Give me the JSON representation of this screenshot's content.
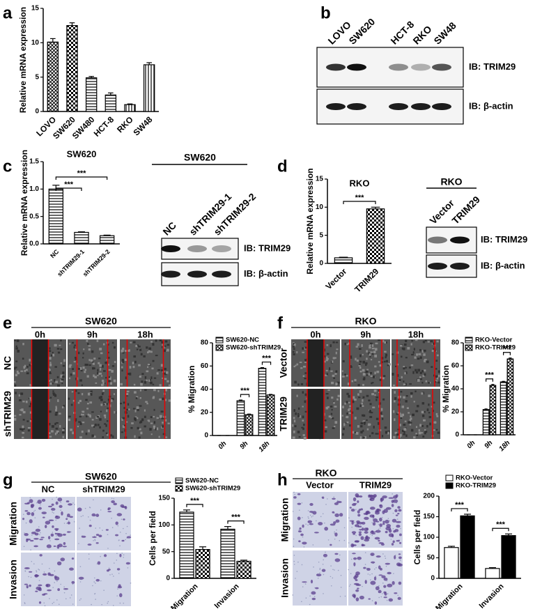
{
  "panel_labels": [
    "a",
    "b",
    "c",
    "d",
    "e",
    "f",
    "g",
    "h"
  ],
  "chart_data": [
    {
      "type": "bar",
      "ylabel": "Relative mRNA expression",
      "categories": [
        "LOVO",
        "SW620",
        "SW480",
        "HCT-8",
        "RKO",
        "SW48"
      ],
      "values": [
        10.1,
        12.5,
        4.9,
        2.4,
        1.0,
        6.8
      ],
      "errors": [
        0.5,
        0.4,
        0.2,
        0.3,
        0.1,
        0.3
      ],
      "color": "#000000",
      "patterns": [
        "crosshatch",
        "checker",
        "hlines",
        "hlines",
        "vlines",
        "vlines"
      ],
      "ylim": [
        0,
        15
      ],
      "yticks": [
        0,
        5,
        10,
        15
      ]
    },
    {
      "type": "bar",
      "title": "SW620",
      "ylabel": "Relative mRNA expression",
      "categories": [
        "NC",
        "shTRIM29-1",
        "shTRIM29-2"
      ],
      "values": [
        1.0,
        0.21,
        0.15
      ],
      "errors": [
        0.07,
        0.01,
        0.01
      ],
      "color": "#000000",
      "patterns": [
        "hlines",
        "hlines",
        "hlines"
      ],
      "ylim": [
        0,
        1.5
      ],
      "yticks": [
        {
          "value": 0,
          "label": "0.0"
        },
        0.5,
        {
          "value": 1,
          "label": "1.0"
        },
        1.5
      ],
      "annotations": [
        "***",
        "***"
      ]
    },
    {
      "type": "bar",
      "title": "RKO",
      "ylabel": "Relative mRNA expression",
      "categories": [
        "Vector",
        "TRIM29"
      ],
      "values": [
        1.0,
        9.7
      ],
      "errors": [
        0.1,
        0.3
      ],
      "color": "#000000",
      "patterns": [
        "hlines",
        "checker"
      ],
      "ylim": [
        0,
        15
      ],
      "yticks": [
        0,
        5,
        10,
        15
      ],
      "annotations": [
        "***"
      ]
    },
    {
      "type": "bar",
      "ylabel": "% Migration",
      "categories": [
        "0h",
        "9h",
        "18h"
      ],
      "series": [
        {
          "name": "SW620-NC",
          "color": "#000000",
          "pattern": "hlines",
          "values": [
            0,
            30,
            58
          ],
          "errors": [
            0,
            0.6,
            0.6
          ]
        },
        {
          "name": "SW620-shTRIM29",
          "color": "#000000",
          "pattern": "crosshatch",
          "values": [
            0,
            18,
            35
          ],
          "errors": [
            0,
            0.5,
            0.5
          ]
        }
      ],
      "ylim": [
        0,
        80
      ],
      "yticks": [
        0,
        20,
        40,
        60,
        80
      ],
      "annotations": [
        "***",
        "***"
      ],
      "legend": "upper left"
    },
    {
      "type": "bar",
      "ylabel": "% Migration",
      "categories": [
        "0h",
        "9h",
        "18h"
      ],
      "series": [
        {
          "name": "RKO-Vector",
          "color": "#000000",
          "pattern": "hlines",
          "values": [
            0,
            22,
            46
          ],
          "errors": [
            0,
            0.5,
            0.5
          ]
        },
        {
          "name": "RKO-TRIM29",
          "color": "#000000",
          "pattern": "crosshatch",
          "values": [
            0,
            43,
            66
          ],
          "errors": [
            0,
            0.8,
            0.8
          ]
        }
      ],
      "ylim": [
        0,
        80
      ],
      "yticks": [
        0,
        20,
        40,
        60,
        80
      ],
      "annotations": [
        "***",
        "***"
      ],
      "legend": "upper left"
    },
    {
      "type": "bar",
      "ylabel": "Cells per field",
      "categories": [
        "Migration",
        "Invasion"
      ],
      "series": [
        {
          "name": "SW620-NC",
          "color": "#000000",
          "pattern": "hlines",
          "values": [
            124,
            92
          ],
          "errors": [
            4,
            5
          ]
        },
        {
          "name": "SW620-shTRIM29",
          "color": "#000000",
          "pattern": "checker",
          "values": [
            54,
            32
          ],
          "errors": [
            5,
            2
          ]
        }
      ],
      "ylim": [
        0,
        150
      ],
      "yticks": [
        0,
        50,
        100,
        150
      ],
      "annotations": [
        "***",
        "***"
      ],
      "legend": "upper left"
    },
    {
      "type": "bar",
      "ylabel": "Cells per field",
      "categories": [
        "Migration",
        "Invasion"
      ],
      "series": [
        {
          "name": "RKO-Vector",
          "color": "#000000",
          "pattern": "none",
          "values": [
            75,
            24
          ],
          "errors": [
            3,
            2
          ]
        },
        {
          "name": "RKO-TRIM29",
          "color": "#000000",
          "pattern": "solid",
          "values": [
            152,
            104
          ],
          "errors": [
            4,
            4
          ]
        }
      ],
      "ylim": [
        0,
        200
      ],
      "yticks": [
        0,
        50,
        100,
        150,
        200
      ],
      "annotations": [
        "***",
        "***"
      ],
      "legend": "upper left"
    }
  ],
  "blots": [
    {
      "lanes": [
        "LOVO",
        "SW620",
        "HCT-8",
        "RKO",
        "SW48"
      ],
      "probes": [
        "IB: TRIM29",
        "IB: β-actin"
      ]
    },
    {
      "title": "SW620",
      "lanes": [
        "NC",
        "shTRIM29-1",
        "shTRIM29-2"
      ],
      "probes": [
        "IB: TRIM29",
        "IB: β-actin"
      ]
    },
    {
      "title": "RKO",
      "lanes": [
        "Vector",
        "TRIM29"
      ],
      "probes": [
        "IB: TRIM29",
        "IB: β-actin"
      ]
    }
  ],
  "image_panels": [
    {
      "title": "SW620",
      "columns": [
        "0h",
        "9h",
        "18h"
      ],
      "rows": [
        "NC",
        "shTRIM29"
      ]
    },
    {
      "title": "RKO",
      "columns": [
        "0h",
        "9h",
        "18h"
      ],
      "rows": [
        "Vector",
        "TRIM29"
      ]
    },
    {
      "title": "SW620",
      "columns": [
        "NC",
        "shTRIM29"
      ],
      "rows": [
        "Migration",
        "Invasion"
      ]
    },
    {
      "title": "RKO",
      "columns": [
        "Vector",
        "TRIM29"
      ],
      "rows": [
        "Migration",
        "Invasion"
      ]
    }
  ]
}
